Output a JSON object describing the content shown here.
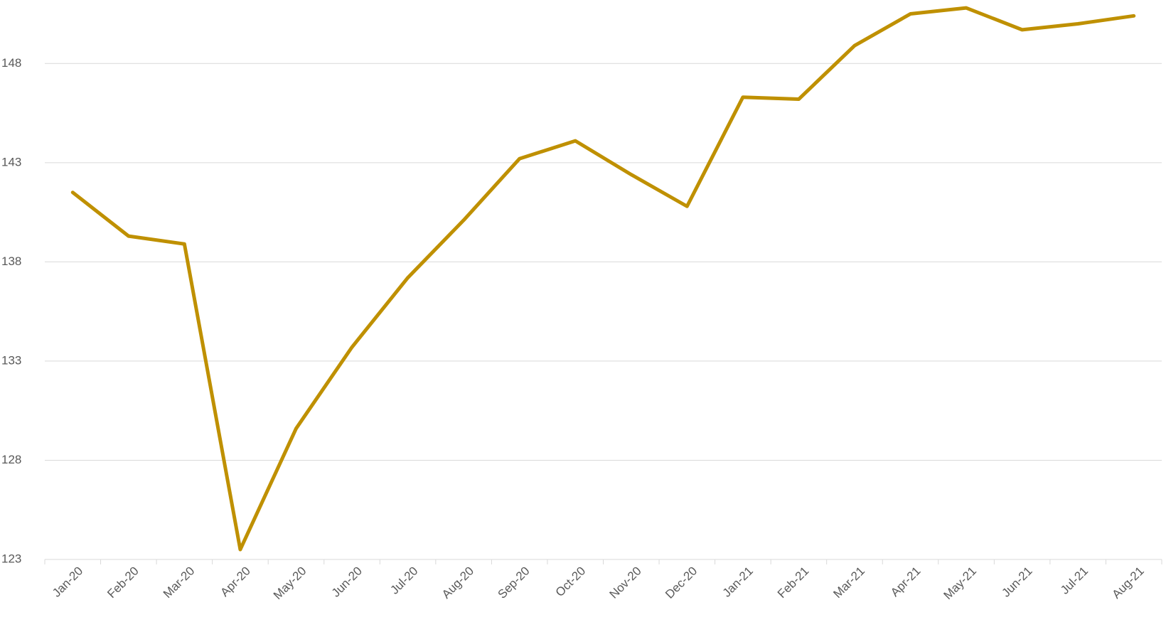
{
  "chart_data": {
    "type": "line",
    "categories": [
      "Jan-20",
      "Feb-20",
      "Mar-20",
      "Apr-20",
      "May-20",
      "Jun-20",
      "Jul-20",
      "Aug-20",
      "Sep-20",
      "Oct-20",
      "Nov-20",
      "Dec-20",
      "Jan-21",
      "Feb-21",
      "Mar-21",
      "Apr-21",
      "May-21",
      "Jun-21",
      "Jul-21",
      "Aug-21"
    ],
    "series": [
      {
        "color": "#bf9000",
        "values": [
          141.5,
          139.3,
          138.9,
          123.5,
          129.6,
          133.7,
          137.2,
          140.1,
          143.2,
          144.1,
          142.4,
          140.8,
          146.3,
          146.2,
          148.9,
          150.5,
          150.8,
          149.7,
          150.0,
          150.4
        ]
      }
    ],
    "ylim": [
      123,
      151.2
    ],
    "yticks": [
      123,
      128,
      133,
      138,
      143,
      148
    ],
    "grid": true
  }
}
